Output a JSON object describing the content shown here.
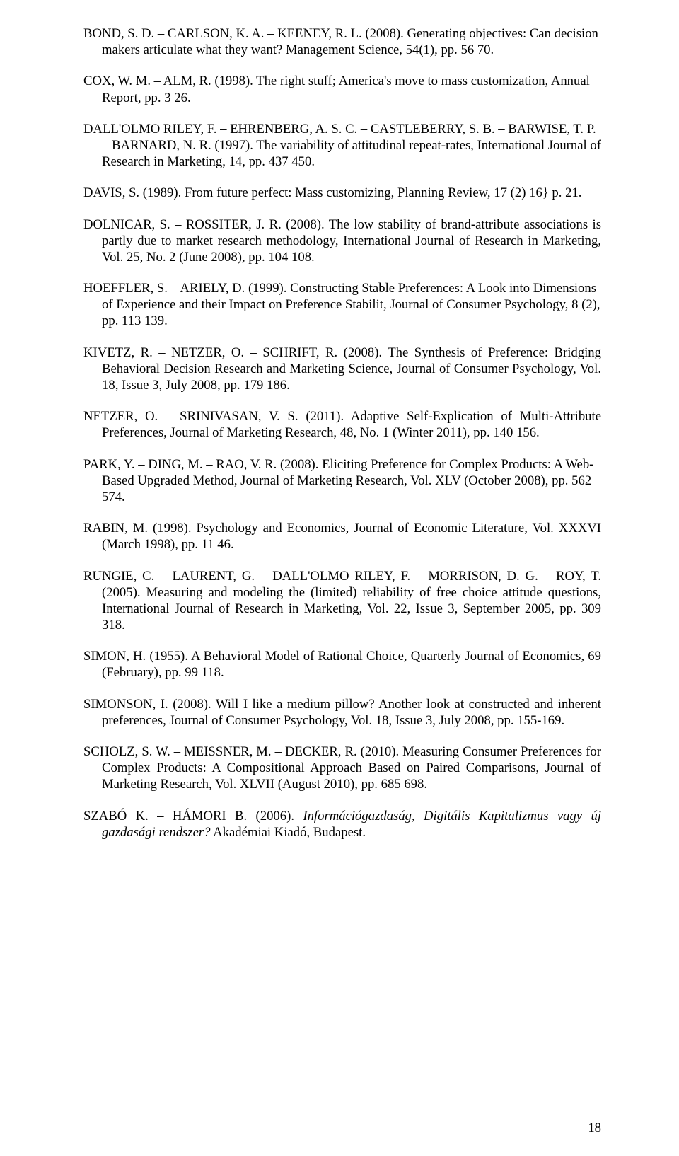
{
  "refs": [
    {
      "justify": false,
      "html": "BOND, S. D. – CARLSON, K. A. – KEENEY, R. L. (2008). Generating objectives: Can decision makers articulate what they want? Management Science, 54(1), pp. 56 70."
    },
    {
      "justify": false,
      "html": "COX, W. M. – ALM, R. (1998). The right stuff; America's move to mass customization, Annual Report, pp. 3 26."
    },
    {
      "justify": false,
      "html": "DALL'OLMO RILEY, F. – EHRENBERG, A. S. C. – CASTLEBERRY, S. B. – BARWISE, T. P. – BARNARD, N. R. (1997). The variability of attitudinal repeat-rates, International Journal of Research in Marketing, 14, pp. 437 450."
    },
    {
      "justify": false,
      "html": "DAVIS, S. (1989). From future perfect: Mass customizing, Planning Review, 17 (2) 16} p. 21."
    },
    {
      "justify": true,
      "html": "DOLNICAR, S. – ROSSITER, J. R. (2008). The low stability of brand-attribute associations is partly due to market research methodology, International Journal of Research in Marketing, Vol. 25, No. 2 (June 2008), pp. 104 108."
    },
    {
      "justify": false,
      "html": "HOEFFLER, S. – ARIELY, D. (1999). Constructing Stable Preferences: A Look into Dimensions of Experience and their Impact on Preference Stabilit, Journal of Consumer Psychology, 8 (2), pp. 113 139."
    },
    {
      "justify": true,
      "html": "KIVETZ, R. – NETZER, O. – SCHRIFT, R. (2008). The Synthesis of Preference: Bridging Behavioral Decision Research and Marketing Science, Journal of Consumer Psychology, Vol. 18, Issue 3, July 2008, pp. 179 186."
    },
    {
      "justify": true,
      "html": "NETZER, O. – SRINIVASAN, V. S. (2011). Adaptive Self-Explication of Multi-Attribute Preferences, Journal of Marketing Research, 48, No. 1 (Winter 2011), pp. 140 156."
    },
    {
      "justify": false,
      "html": "PARK, Y. – DING, M. – RAO, V. R. (2008). Eliciting Preference for Complex Products: A Web-Based Upgraded Method, Journal of Marketing Research, Vol. XLV (October 2008), pp. 562 574."
    },
    {
      "justify": true,
      "html": "RABIN, M. (1998). Psychology and Economics, Journal of Economic Literature, Vol. XXXVI (March 1998), pp. 11 46."
    },
    {
      "justify": true,
      "html": "RUNGIE, C. – LAURENT, G. – DALL'OLMO RILEY, F. – MORRISON, D. G. – ROY, T. (2005). Measuring and modeling the (limited) reliability of free choice attitude questions, International Journal of Research in Marketing, Vol. 22, Issue 3, September 2005, pp. 309 318."
    },
    {
      "justify": true,
      "html": "SIMON, H. (1955). A Behavioral Model of Rational Choice, Quarterly Journal of Economics, 69 (February), pp. 99 118."
    },
    {
      "justify": true,
      "html": "SIMONSON, I. (2008). Will I like a medium pillow? Another look at constructed and inherent preferences, Journal of Consumer Psychology, Vol. 18, Issue 3, July 2008, pp. 155-169."
    },
    {
      "justify": true,
      "html": "SCHOLZ, S. W. – MEISSNER, M. – DECKER, R. (2010). Measuring Consumer Preferences for Complex Products: A Compositional Approach Based on Paired Comparisons, Journal of Marketing Research, Vol. XLVII (August 2010), pp. 685 698."
    },
    {
      "justify": true,
      "html": "SZABÓ K. – HÁMORI B. (2006). <span class=\"italic\">Információgazdaság, Digitális Kapitalizmus vagy új gazdasági rendszer?</span> Akadémiai Kiadó, Budapest."
    }
  ],
  "page_number": "18"
}
